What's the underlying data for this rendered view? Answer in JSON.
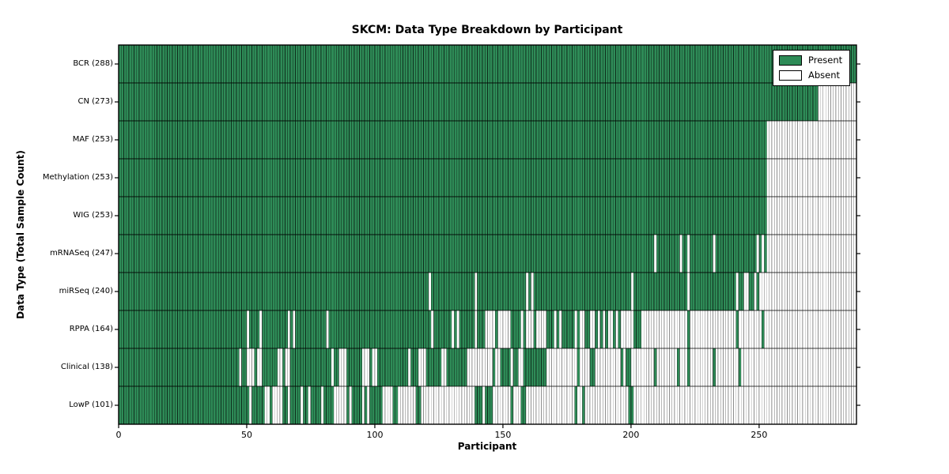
{
  "title": "SKCM: Data Type Breakdown by Participant",
  "axes": {
    "x_label": "Participant",
    "y_label": "Data Type (Total Sample Count)",
    "x_ticks": [
      0,
      50,
      100,
      150,
      200,
      250
    ],
    "x_range": [
      0,
      288
    ]
  },
  "legend": {
    "items": [
      {
        "label": "Present",
        "color": "#2e8b57"
      },
      {
        "label": "Absent",
        "color": "#ffffff"
      }
    ]
  },
  "colors": {
    "present_fill": "#2e8b57",
    "absent_fill": "#ffffff",
    "present_edge": "rgba(0,0,0,0.55)",
    "absent_edge": "rgba(0,0,0,0.33)",
    "frame": "#000000"
  },
  "chart_data": {
    "type": "heatmap",
    "title": "SKCM: Data Type Breakdown by Participant",
    "xlabel": "Participant",
    "ylabel": "Data Type (Total Sample Count)",
    "x_range": [
      0,
      288
    ],
    "x_ticks": [
      0,
      50,
      100,
      150,
      200,
      250
    ],
    "n_participants": 288,
    "legend": [
      "Present",
      "Absent"
    ],
    "grid": false,
    "legend_position": "upper right",
    "rows": [
      {
        "label": "BCR (288)",
        "name": "BCR",
        "total": 288,
        "present_runs": [
          [
            0,
            288
          ]
        ]
      },
      {
        "label": "CN (273)",
        "name": "CN",
        "total": 273,
        "present_runs": [
          [
            0,
            273
          ]
        ]
      },
      {
        "label": "MAF (253)",
        "name": "MAF",
        "total": 253,
        "present_runs": [
          [
            0,
            253
          ]
        ]
      },
      {
        "label": "Methylation (253)",
        "name": "Methylation",
        "total": 253,
        "present_runs": [
          [
            0,
            253
          ]
        ]
      },
      {
        "label": "WIG (253)",
        "name": "WIG",
        "total": 253,
        "present_runs": [
          [
            0,
            253
          ]
        ]
      },
      {
        "label": "mRNASeq (247)",
        "name": "mRNASeq",
        "total": 247,
        "present_runs": [
          [
            0,
            209
          ],
          [
            210,
            219
          ],
          [
            220,
            222
          ],
          [
            223,
            232
          ],
          [
            233,
            249
          ],
          [
            250,
            251
          ],
          [
            252,
            253
          ]
        ]
      },
      {
        "label": "miRSeq (240)",
        "name": "miRSeq",
        "total": 240,
        "present_runs": [
          [
            0,
            121
          ],
          [
            122,
            139
          ],
          [
            140,
            159
          ],
          [
            160,
            161
          ],
          [
            162,
            200
          ],
          [
            201,
            222
          ],
          [
            223,
            241
          ],
          [
            242,
            244
          ],
          [
            246,
            248
          ],
          [
            249,
            250
          ]
        ]
      },
      {
        "label": "RPPA (164)",
        "name": "RPPA",
        "total": 164,
        "present_runs": [
          [
            0,
            50
          ],
          [
            51,
            55
          ],
          [
            56,
            66
          ],
          [
            67,
            68
          ],
          [
            69,
            81
          ],
          [
            82,
            122
          ],
          [
            123,
            130
          ],
          [
            131,
            132
          ],
          [
            133,
            139
          ],
          [
            140,
            143
          ],
          [
            147,
            148
          ],
          [
            153,
            157
          ],
          [
            158,
            159
          ],
          [
            162,
            163
          ],
          [
            167,
            170
          ],
          [
            171,
            172
          ],
          [
            173,
            178
          ],
          [
            179,
            180
          ],
          [
            182,
            184
          ],
          [
            186,
            187
          ],
          [
            188,
            189
          ],
          [
            190,
            191
          ],
          [
            193,
            194
          ],
          [
            195,
            196
          ],
          [
            201,
            204
          ],
          [
            222,
            223
          ],
          [
            241,
            242
          ],
          [
            251,
            252
          ]
        ]
      },
      {
        "label": "Clinical (138)",
        "name": "Clinical",
        "total": 138,
        "present_runs": [
          [
            0,
            47
          ],
          [
            48,
            50
          ],
          [
            53,
            54
          ],
          [
            56,
            62
          ],
          [
            64,
            65
          ],
          [
            67,
            83
          ],
          [
            84,
            86
          ],
          [
            89,
            95
          ],
          [
            98,
            99
          ],
          [
            101,
            113
          ],
          [
            114,
            117
          ],
          [
            120,
            126
          ],
          [
            128,
            136
          ],
          [
            146,
            147
          ],
          [
            149,
            153
          ],
          [
            154,
            156
          ],
          [
            158,
            167
          ],
          [
            179,
            180
          ],
          [
            184,
            186
          ],
          [
            196,
            197
          ],
          [
            198,
            200
          ],
          [
            209,
            210
          ],
          [
            218,
            219
          ],
          [
            222,
            223
          ],
          [
            232,
            233
          ],
          [
            242,
            243
          ]
        ]
      },
      {
        "label": "LowP (101)",
        "name": "LowP",
        "total": 101,
        "present_runs": [
          [
            0,
            51
          ],
          [
            52,
            57
          ],
          [
            59,
            60
          ],
          [
            64,
            66
          ],
          [
            67,
            71
          ],
          [
            72,
            74
          ],
          [
            75,
            79
          ],
          [
            80,
            84
          ],
          [
            89,
            90
          ],
          [
            91,
            95
          ],
          [
            96,
            97
          ],
          [
            98,
            103
          ],
          [
            107,
            109
          ],
          [
            116,
            118
          ],
          [
            139,
            142
          ],
          [
            143,
            146
          ],
          [
            153,
            154
          ],
          [
            157,
            159
          ],
          [
            178,
            179
          ],
          [
            181,
            182
          ],
          [
            199,
            201
          ]
        ]
      }
    ]
  }
}
